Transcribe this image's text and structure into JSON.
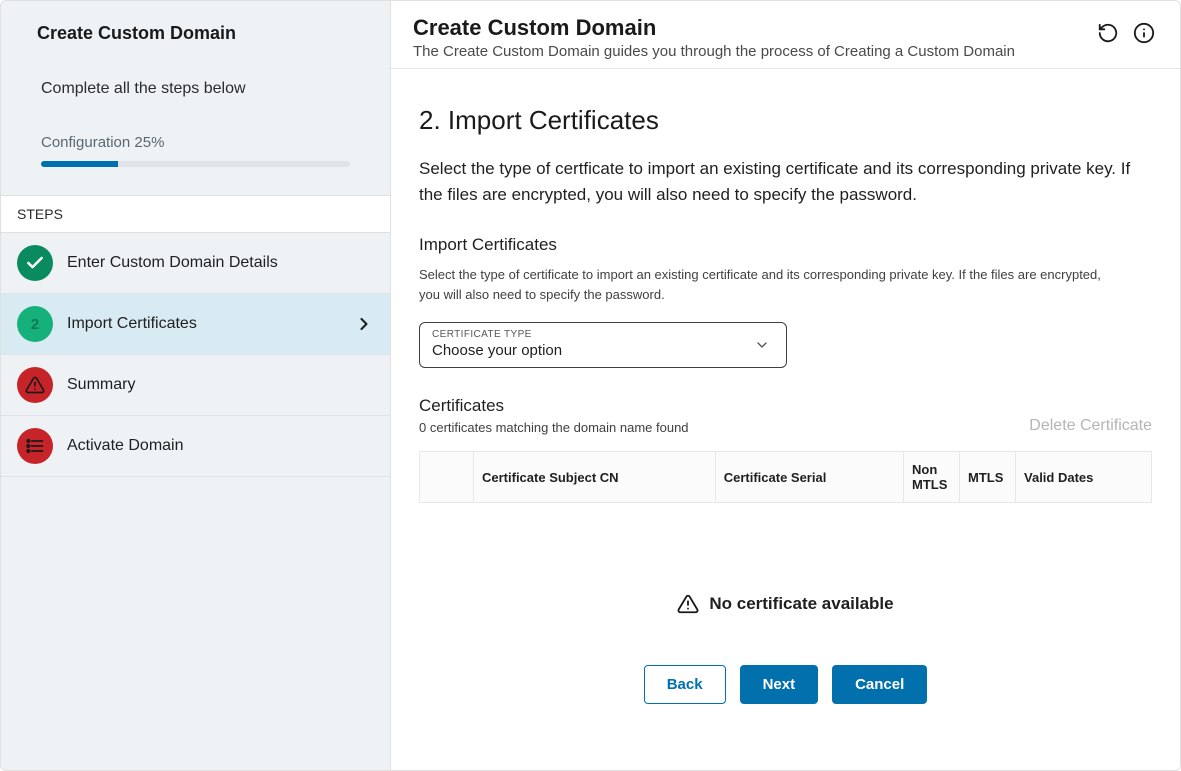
{
  "sidebar": {
    "title": "Create Custom Domain",
    "subtitle": "Complete all the steps below",
    "progress": {
      "label": "Configuration 25%",
      "percent": 25,
      "fill_color": "#0270ad",
      "track_color": "#e0e4e8"
    },
    "steps_heading": "STEPS",
    "steps": [
      {
        "label": "Enter Custom Domain Details",
        "status": "complete",
        "icon_bg": "#0a8a5f"
      },
      {
        "label": "Import Certificates",
        "status": "active",
        "icon_bg": "#16b07a",
        "number": "2"
      },
      {
        "label": "Summary",
        "status": "warning",
        "icon_bg": "#c7242a"
      },
      {
        "label": "Activate Domain",
        "status": "pending",
        "icon_bg": "#c7242a"
      }
    ]
  },
  "header": {
    "title": "Create Custom Domain",
    "subtitle": "The Create Custom Domain guides you through the process of Creating a Custom Domain"
  },
  "main": {
    "section_title": "2. Import Certificates",
    "section_desc": "Select the type of certficate to import an existing certificate and its corresponding private key. If the files are encrypted, you will also need to specify the password.",
    "import": {
      "title": "Import Certificates",
      "desc": "Select the type of certificate to import an existing certificate and its corresponding private key. If the files are encrypted, you will also need to specify the password.",
      "select_label": "CERTIFICATE TYPE",
      "select_value": "Choose your option"
    },
    "certs": {
      "title": "Certificates",
      "count": "0 certificates matching the domain name found",
      "delete_label": "Delete Certificate",
      "columns": [
        "Certificate Subject CN",
        "Certificate Serial",
        "Non MTLS",
        "MTLS",
        "Valid Dates"
      ],
      "empty_text": "No certificate available"
    }
  },
  "footer": {
    "back": "Back",
    "next": "Next",
    "cancel": "Cancel"
  },
  "colors": {
    "sidebar_bg": "#eef2f5",
    "primary": "#0270ad",
    "green_dark": "#0a8a5f",
    "green_light": "#16b07a",
    "red": "#c7242a",
    "text": "#1a1a1a",
    "muted": "#5a6872",
    "border": "#e0e0e0"
  }
}
